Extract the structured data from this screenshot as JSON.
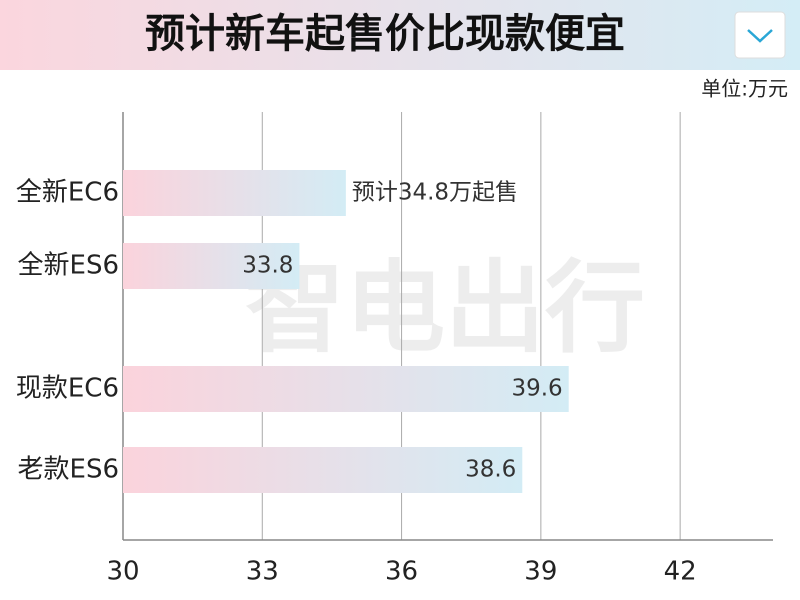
{
  "header": {
    "title": "预计新车起售价比现款便宜",
    "unit": "单位:万元"
  },
  "watermark": "智电出行",
  "chart_data": {
    "type": "bar",
    "orientation": "horizontal",
    "categories": [
      "全新EC6",
      "全新ES6",
      "现款EC6",
      "老款ES6"
    ],
    "values": [
      34.8,
      33.8,
      39.6,
      38.6
    ],
    "value_labels": [
      "预计34.8万起售",
      "33.8",
      "39.6",
      "38.6"
    ],
    "colors": [
      "#fbd3dc",
      "#d3ecf5"
    ],
    "xlim": [
      30,
      44
    ],
    "xticks": [
      30,
      33,
      36,
      39,
      42
    ],
    "grid": true
  }
}
